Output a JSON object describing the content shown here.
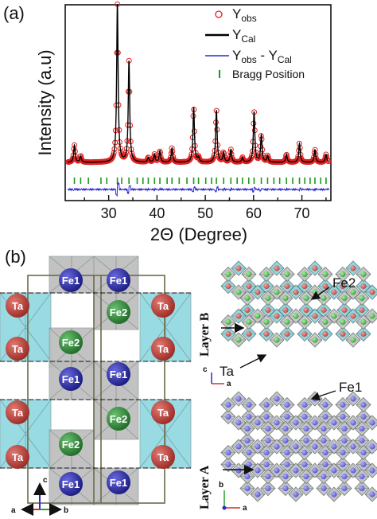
{
  "figure": {
    "panel_a_label": "(a)",
    "panel_b_label": "(b)"
  },
  "chart_data": {
    "type": "line",
    "xlabel": "2Θ (Degree)",
    "ylabel": "Intensity (a.u)",
    "xlim": [
      21,
      76
    ],
    "xticks": [
      30,
      40,
      50,
      60,
      70
    ],
    "yticks_shown": false,
    "legend_position": "top-right",
    "legend": {
      "obs": "Y",
      "obs_sub": "obs",
      "cal": "Y",
      "cal_sub": "Cal",
      "diff_a": "Y",
      "diff_a_sub": "obs",
      "diff_sep": " - Y",
      "diff_b_sub": "Cal",
      "bragg": "Bragg Position"
    },
    "series": [
      {
        "name": "Yobs",
        "style": "open-circles",
        "color": "#e02020"
      },
      {
        "name": "YCal",
        "style": "line",
        "color": "#000000"
      },
      {
        "name": "Yobs - YCal",
        "style": "line",
        "color": "#2a2ad0"
      },
      {
        "name": "Bragg Position",
        "style": "ticks",
        "color": "#1a9a1a"
      }
    ],
    "background": 0.04,
    "peaks": [
      {
        "x": 22.9,
        "y": 0.11
      },
      {
        "x": 24.2,
        "y": 0.04
      },
      {
        "x": 31.8,
        "y": 1.0
      },
      {
        "x": 34.2,
        "y": 0.64
      },
      {
        "x": 38.2,
        "y": 0.03
      },
      {
        "x": 39.5,
        "y": 0.05
      },
      {
        "x": 40.6,
        "y": 0.07
      },
      {
        "x": 43.1,
        "y": 0.09
      },
      {
        "x": 47.6,
        "y": 0.35
      },
      {
        "x": 48.6,
        "y": 0.03
      },
      {
        "x": 52.3,
        "y": 0.33
      },
      {
        "x": 53.8,
        "y": 0.06
      },
      {
        "x": 55.3,
        "y": 0.08
      },
      {
        "x": 57.7,
        "y": 0.03
      },
      {
        "x": 60.1,
        "y": 0.32
      },
      {
        "x": 61.6,
        "y": 0.17
      },
      {
        "x": 62.9,
        "y": 0.04
      },
      {
        "x": 66.8,
        "y": 0.05
      },
      {
        "x": 69.5,
        "y": 0.12
      },
      {
        "x": 72.7,
        "y": 0.08
      },
      {
        "x": 75.0,
        "y": 0.05
      }
    ],
    "bragg_positions": [
      22.9,
      24.2,
      25.8,
      28.4,
      29.6,
      31.8,
      32.7,
      34.2,
      35.9,
      37.1,
      38.2,
      39.5,
      40.6,
      42.1,
      43.1,
      44.6,
      46.2,
      47.6,
      48.6,
      50.1,
      51.3,
      52.3,
      53.8,
      55.3,
      56.6,
      57.7,
      59.0,
      60.1,
      61.6,
      62.9,
      64.2,
      65.4,
      66.8,
      68.1,
      69.5,
      70.6,
      71.7,
      72.7,
      73.9,
      75.0
    ]
  },
  "structure_left": {
    "atoms": [
      {
        "label": "Fe1",
        "type": "Fe1"
      },
      {
        "label": "Fe1",
        "type": "Fe1"
      },
      {
        "label": "Ta",
        "type": "Ta"
      },
      {
        "label": "Fe2",
        "type": "Fe2"
      },
      {
        "label": "Ta",
        "type": "Ta"
      },
      {
        "label": "Ta",
        "type": "Ta"
      },
      {
        "label": "Fe2",
        "type": "Fe2"
      },
      {
        "label": "Ta",
        "type": "Ta"
      },
      {
        "label": "Fe1",
        "type": "Fe1"
      },
      {
        "label": "Fe1",
        "type": "Fe1"
      },
      {
        "label": "Ta",
        "type": "Ta"
      },
      {
        "label": "Fe2",
        "type": "Fe2"
      },
      {
        "label": "Ta",
        "type": "Ta"
      },
      {
        "label": "Ta",
        "type": "Ta"
      },
      {
        "label": "Fe2",
        "type": "Fe2"
      },
      {
        "label": "Ta",
        "type": "Ta"
      },
      {
        "label": "Fe1",
        "type": "Fe1"
      },
      {
        "label": "Fe1",
        "type": "Fe1"
      }
    ],
    "axes": {
      "c": "c",
      "a": "a",
      "b": "b"
    }
  },
  "structure_right": {
    "layer_b_label": "Layer B",
    "layer_a_label": "Layer A",
    "fe2_label": "Fe2",
    "ta_label": "Ta",
    "fe1_label": "Fe1",
    "axes_b": {
      "c": "c",
      "a": "a"
    },
    "axes_a": {
      "b": "b",
      "a": "a"
    }
  },
  "colors": {
    "ta": "#b83a35",
    "fe1": "#2a2aa8",
    "fe2": "#2a8a35",
    "ta_poly": "#8ed8e0",
    "fe_poly": "#bcbcbc",
    "obs": "#e02020",
    "diff": "#2a2ad0",
    "bragg": "#1a9a1a"
  }
}
